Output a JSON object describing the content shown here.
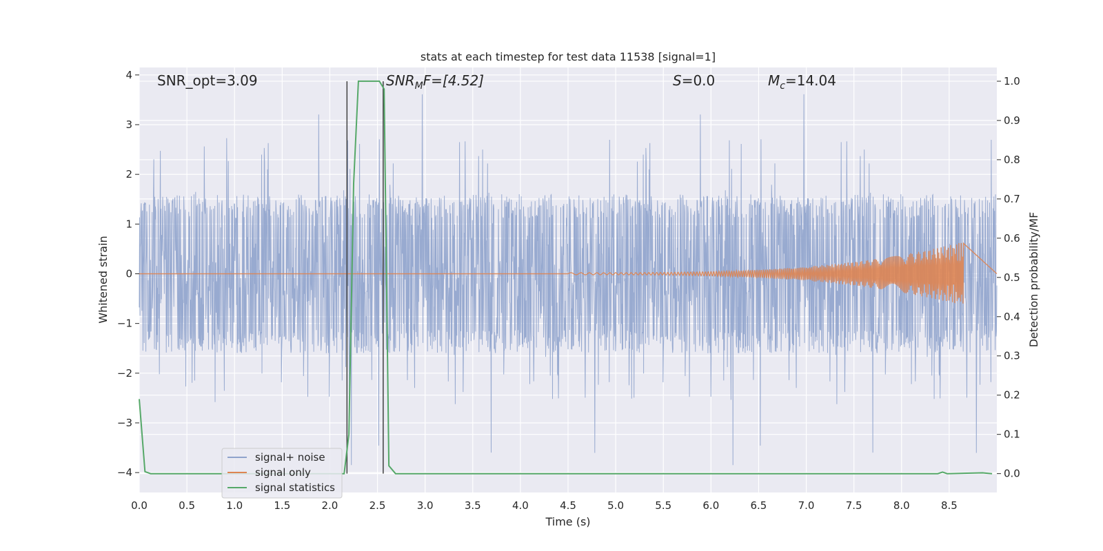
{
  "chart_data": {
    "type": "line",
    "title": "stats at each timestep for test data 11538 [signal=1]",
    "xlabel": "Time (s)",
    "ylabel_left": "Whitened strain",
    "ylabel_right": "Detection probability/MF",
    "xlim": [
      0.0,
      9.0
    ],
    "ylim_left": [
      -4.4,
      4.15
    ],
    "ylim_right": [
      -0.048,
      1.035
    ],
    "x_ticks": [
      "0.0",
      "0.5",
      "1.0",
      "1.5",
      "2.0",
      "2.5",
      "3.0",
      "3.5",
      "4.0",
      "4.5",
      "5.0",
      "5.5",
      "6.0",
      "6.5",
      "7.0",
      "7.5",
      "8.0",
      "8.5"
    ],
    "y_ticks_left": [
      "4",
      "3",
      "2",
      "1",
      "0",
      "−1",
      "−2",
      "−3",
      "−4"
    ],
    "y_ticks_right": [
      "1.0",
      "0.9",
      "0.8",
      "0.7",
      "0.6",
      "0.5",
      "0.4",
      "0.3",
      "0.2",
      "0.1",
      "0.0"
    ],
    "grid": true,
    "legend_placement": "lower-left",
    "annotations": {
      "snr_opt": "SNR_opt=3.09",
      "snr_mf_base": "SNR",
      "snr_mf_sub": "M",
      "snr_mf_rest": "F=[4.52]",
      "s_base": "S",
      "s_rest": "=0.0",
      "mc_base": "M",
      "mc_sub": "c",
      "mc_rest": "=14.04"
    },
    "series": [
      {
        "name": "signal+ noise",
        "color": "#8fa3cc",
        "noise_band": [
          -1.6,
          1.6
        ],
        "typical_peak": [
          -2.5,
          2.6
        ],
        "extreme_peak": [
          -4.0,
          3.75
        ]
      },
      {
        "name": "signal only",
        "color": "#dd8452",
        "chirp_onset": 4.5,
        "chirp_end": 8.65,
        "end_amplitude": 0.62
      },
      {
        "name": "signal statistics",
        "color": "#55a868",
        "x": [
          0.0,
          0.06,
          0.12,
          2.15,
          2.2,
          2.25,
          2.3,
          2.52,
          2.57,
          2.62,
          2.69,
          8.38,
          8.43,
          8.48,
          8.85,
          8.95
        ],
        "y": [
          0.19,
          0.005,
          0.0,
          0.0,
          0.1,
          0.74,
          1.0,
          1.0,
          0.98,
          0.02,
          0.0,
          0.0,
          0.004,
          0.0,
          0.002,
          0.0
        ]
      }
    ],
    "vertical_lines": [
      {
        "x": 2.18,
        "y_range": [
          0.0,
          1.0
        ],
        "color": "#404040"
      },
      {
        "x": 2.56,
        "y_range": [
          0.0,
          1.0
        ],
        "color": "#404040"
      }
    ]
  },
  "legend": {
    "items": [
      {
        "label": "signal+ noise",
        "color": "#8fa3cc"
      },
      {
        "label": "signal only",
        "color": "#dd8452"
      },
      {
        "label": "signal statistics",
        "color": "#55a868"
      }
    ]
  }
}
